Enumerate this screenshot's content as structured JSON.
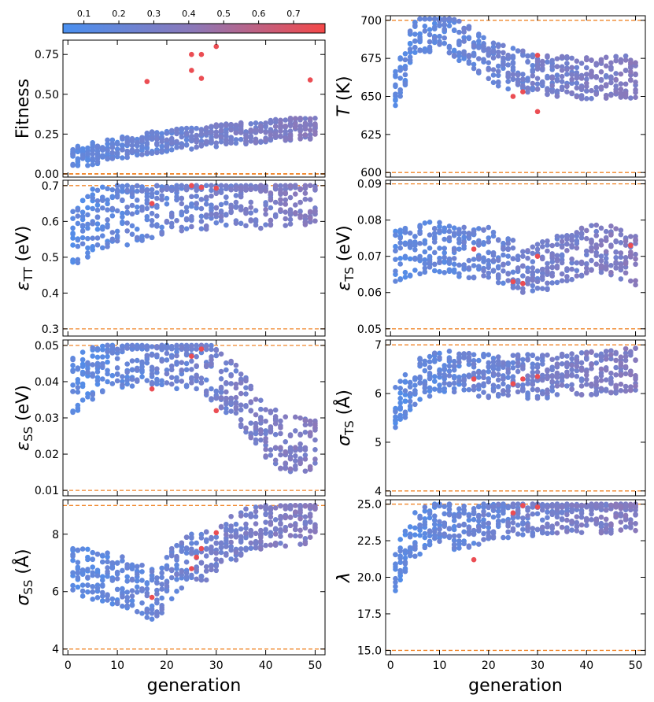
{
  "colorbar": {
    "ticks": [
      "0.1",
      "0.2",
      "0.3",
      "0.4",
      "0.5",
      "0.6",
      "0.7"
    ],
    "tick_values": [
      0.1,
      0.2,
      0.3,
      0.4,
      0.5,
      0.6,
      0.7
    ],
    "range": [
      0.04,
      0.79
    ],
    "colors": {
      "low": "#4a90f0",
      "mid": "#8c78b8",
      "high": "#f54848"
    }
  },
  "boundary_color": "#f0862a",
  "chart_data": [
    {
      "id": "fitness",
      "type": "scatter",
      "ylabel": "Fitness",
      "ylim": [
        -0.02,
        0.84
      ],
      "yticks": [
        0.0,
        0.25,
        0.5,
        0.75
      ],
      "ytick_labels": [
        "0.00",
        "0.25",
        "0.50",
        "0.75"
      ],
      "xlim": [
        -1,
        52
      ],
      "xticks": [
        0,
        10,
        20,
        30,
        40,
        50
      ],
      "xtick_labels": [
        "0",
        "10",
        "20",
        "30",
        "40",
        "50"
      ],
      "xlabel": "",
      "bounds": [
        0.0
      ],
      "trend": [
        [
          1,
          0.1
        ],
        [
          10,
          0.16
        ],
        [
          20,
          0.21
        ],
        [
          30,
          0.24
        ],
        [
          40,
          0.27
        ],
        [
          50,
          0.29
        ]
      ],
      "spread": 0.07,
      "highlights": [
        [
          25,
          0.75
        ],
        [
          27,
          0.75
        ],
        [
          30,
          0.8
        ],
        [
          25,
          0.65
        ],
        [
          27,
          0.6
        ],
        [
          16,
          0.58
        ],
        [
          49,
          0.59
        ]
      ]
    },
    {
      "id": "temperature",
      "type": "scatter",
      "ylabel": "T (K)",
      "ylim": [
        597,
        703
      ],
      "yticks": [
        600,
        625,
        650,
        675,
        700
      ],
      "ytick_labels": [
        "600",
        "625",
        "650",
        "675",
        "700"
      ],
      "xlim": [
        -1,
        52
      ],
      "xticks": [
        0,
        10,
        20,
        30,
        40,
        50
      ],
      "xtick_labels": [
        "0",
        "10",
        "20",
        "30",
        "40",
        "50"
      ],
      "xlabel": "",
      "bounds": [
        600,
        700
      ],
      "trend": [
        [
          1,
          655
        ],
        [
          5,
          688
        ],
        [
          10,
          696
        ],
        [
          15,
          685
        ],
        [
          20,
          672
        ],
        [
          30,
          664
        ],
        [
          40,
          662
        ],
        [
          50,
          663
        ]
      ],
      "spread": 14,
      "highlights": [
        [
          25,
          650
        ],
        [
          27,
          653
        ],
        [
          30,
          640
        ],
        [
          30,
          677
        ]
      ]
    },
    {
      "id": "eps_tt",
      "type": "scatter",
      "ylabel": "ε_TT (eV)",
      "ylim": [
        0.28,
        0.715
      ],
      "yticks": [
        0.3,
        0.4,
        0.5,
        0.6,
        0.7
      ],
      "ytick_labels": [
        "0.3",
        "0.4",
        "0.5",
        "0.6",
        "0.7"
      ],
      "xlim": [
        -1,
        52
      ],
      "xticks": [
        0,
        10,
        20,
        30,
        40,
        50
      ],
      "xtick_labels": [
        "0",
        "10",
        "20",
        "30",
        "40",
        "50"
      ],
      "xlabel": "",
      "bounds": [
        0.3,
        0.7
      ],
      "trend": [
        [
          1,
          0.56
        ],
        [
          5,
          0.6
        ],
        [
          10,
          0.62
        ],
        [
          15,
          0.63
        ],
        [
          20,
          0.66
        ],
        [
          30,
          0.67
        ],
        [
          40,
          0.67
        ],
        [
          50,
          0.68
        ]
      ],
      "spread": 0.09,
      "cap": 0.7,
      "highlights": [
        [
          27,
          0.695
        ],
        [
          25,
          0.7
        ],
        [
          30,
          0.693
        ],
        [
          17,
          0.65
        ]
      ]
    },
    {
      "id": "eps_ts",
      "type": "scatter",
      "ylabel": "ε_TS (eV)",
      "ylim": [
        0.048,
        0.091
      ],
      "yticks": [
        0.05,
        0.06,
        0.07,
        0.08,
        0.09
      ],
      "ytick_labels": [
        "0.05",
        "0.06",
        "0.07",
        "0.08",
        "0.09"
      ],
      "xlim": [
        -1,
        52
      ],
      "xticks": [
        0,
        10,
        20,
        30,
        40,
        50
      ],
      "xtick_labels": [
        "0",
        "10",
        "20",
        "30",
        "40",
        "50"
      ],
      "xlabel": "",
      "bounds": [
        0.05,
        0.09
      ],
      "trend": [
        [
          1,
          0.07
        ],
        [
          8,
          0.073
        ],
        [
          15,
          0.071
        ],
        [
          20,
          0.071
        ],
        [
          28,
          0.066
        ],
        [
          35,
          0.069
        ],
        [
          42,
          0.073
        ],
        [
          50,
          0.069
        ]
      ],
      "spread": 0.007,
      "highlights": [
        [
          25,
          0.063
        ],
        [
          27,
          0.0625
        ],
        [
          30,
          0.07
        ],
        [
          17,
          0.072
        ],
        [
          49,
          0.073
        ]
      ]
    },
    {
      "id": "eps_ss",
      "type": "scatter",
      "ylabel": "ε_SS (eV)",
      "ylim": [
        0.0085,
        0.0515
      ],
      "yticks": [
        0.01,
        0.02,
        0.03,
        0.04,
        0.05
      ],
      "ytick_labels": [
        "0.01",
        "0.02",
        "0.03",
        "0.04",
        "0.05"
      ],
      "xlim": [
        -1,
        52
      ],
      "xticks": [
        0,
        10,
        20,
        30,
        40,
        50
      ],
      "xtick_labels": [
        "0",
        "10",
        "20",
        "30",
        "40",
        "50"
      ],
      "xlabel": "",
      "bounds": [
        0.01,
        0.05
      ],
      "trend": [
        [
          1,
          0.039
        ],
        [
          8,
          0.046
        ],
        [
          15,
          0.047
        ],
        [
          22,
          0.046
        ],
        [
          28,
          0.044
        ],
        [
          34,
          0.037
        ],
        [
          40,
          0.026
        ],
        [
          45,
          0.022
        ],
        [
          50,
          0.024
        ]
      ],
      "spread": 0.008,
      "cap": 0.05,
      "highlights": [
        [
          27,
          0.049
        ],
        [
          25,
          0.047
        ],
        [
          30,
          0.032
        ],
        [
          17,
          0.038
        ]
      ]
    },
    {
      "id": "sigma_ts",
      "type": "scatter",
      "ylabel": "σ_TS (Å)",
      "ylim": [
        3.9,
        7.1
      ],
      "yticks": [
        4,
        5,
        6,
        7
      ],
      "ytick_labels": [
        "4",
        "5",
        "6",
        "7"
      ],
      "xlim": [
        -1,
        52
      ],
      "xticks": [
        0,
        10,
        20,
        30,
        40,
        50
      ],
      "xtick_labels": [
        "0",
        "10",
        "20",
        "30",
        "40",
        "50"
      ],
      "xlabel": "",
      "bounds": [
        4,
        7
      ],
      "trend": [
        [
          1,
          5.7
        ],
        [
          6,
          6.3
        ],
        [
          12,
          6.5
        ],
        [
          20,
          6.35
        ],
        [
          30,
          6.35
        ],
        [
          40,
          6.4
        ],
        [
          50,
          6.5
        ]
      ],
      "spread": 0.45,
      "cap": 7,
      "highlights": [
        [
          25,
          6.2
        ],
        [
          27,
          6.3
        ],
        [
          30,
          6.35
        ],
        [
          17,
          6.3
        ]
      ]
    },
    {
      "id": "sigma_ss",
      "type": "scatter",
      "ylabel": "σ_SS (Å)",
      "ylim": [
        3.8,
        9.2
      ],
      "yticks": [
        4,
        6,
        8
      ],
      "ytick_labels": [
        "4",
        "6",
        "8"
      ],
      "xlim": [
        -1,
        52
      ],
      "xticks": [
        0,
        10,
        20,
        30,
        40,
        50
      ],
      "xtick_labels": [
        "0",
        "10",
        "20",
        "30",
        "40",
        "50"
      ],
      "xlabel": "generation",
      "bounds": [
        4,
        9
      ],
      "trend": [
        [
          1,
          6.8
        ],
        [
          8,
          6.5
        ],
        [
          14,
          6.2
        ],
        [
          18,
          5.8
        ],
        [
          22,
          6.9
        ],
        [
          28,
          7.3
        ],
        [
          34,
          7.9
        ],
        [
          40,
          8.4
        ],
        [
          50,
          8.6
        ]
      ],
      "spread": 0.9,
      "cap": 9,
      "highlights": [
        [
          30,
          8.05
        ],
        [
          27,
          7.5
        ],
        [
          25,
          6.8
        ],
        [
          26,
          7.2
        ],
        [
          17,
          5.8
        ]
      ]
    },
    {
      "id": "lambda",
      "type": "scatter",
      "ylabel": "λ",
      "ylim": [
        14.7,
        25.3
      ],
      "yticks": [
        15.0,
        17.5,
        20.0,
        22.5,
        25.0
      ],
      "ytick_labels": [
        "15.0",
        "17.5",
        "20.0",
        "22.5",
        "25.0"
      ],
      "xlim": [
        -1,
        52
      ],
      "xticks": [
        0,
        10,
        20,
        30,
        40,
        50
      ],
      "xtick_labels": [
        "0",
        "10",
        "20",
        "30",
        "40",
        "50"
      ],
      "xlabel": "generation",
      "bounds": [
        15,
        25
      ],
      "trend": [
        [
          1,
          20.5
        ],
        [
          5,
          23
        ],
        [
          10,
          23.8
        ],
        [
          16,
          23.2
        ],
        [
          20,
          24.2
        ],
        [
          30,
          24.4
        ],
        [
          40,
          24.6
        ],
        [
          50,
          24.6
        ]
      ],
      "spread": 1.6,
      "cap": 25,
      "highlights": [
        [
          25,
          24.4
        ],
        [
          27,
          24.9
        ],
        [
          30,
          24.8
        ],
        [
          17,
          21.2
        ]
      ]
    }
  ]
}
